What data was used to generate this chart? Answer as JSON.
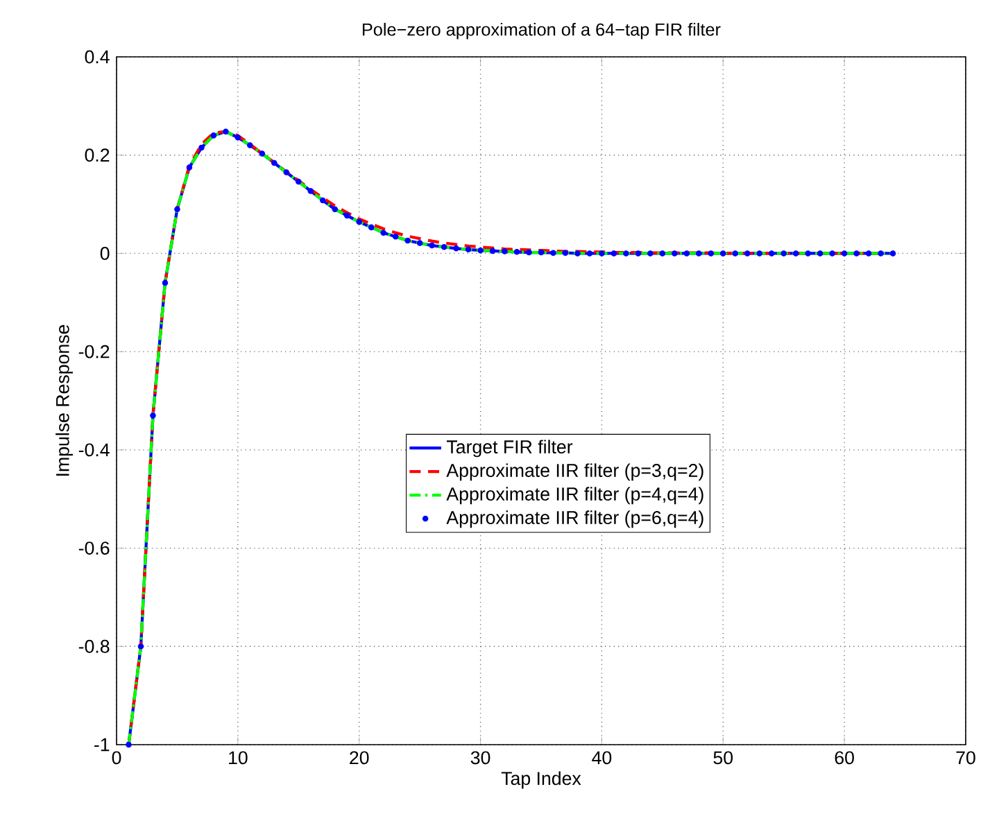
{
  "chart_data": {
    "type": "line",
    "title": "Pole−zero approximation of a 64−tap FIR filter",
    "xlabel": "Tap Index",
    "ylabel": "Impulse Response",
    "x": [
      1,
      2,
      3,
      4,
      5,
      6,
      7,
      8,
      9,
      10,
      11,
      12,
      13,
      14,
      15,
      16,
      17,
      18,
      19,
      20,
      21,
      22,
      23,
      24,
      25,
      26,
      27,
      28,
      29,
      30,
      31,
      32,
      33,
      34,
      35,
      36,
      37,
      38,
      39,
      40,
      41,
      42,
      43,
      44,
      45,
      46,
      47,
      48,
      49,
      50,
      51,
      52,
      53,
      54,
      55,
      56,
      57,
      58,
      59,
      60,
      61,
      62,
      63,
      64
    ],
    "xlim": [
      0,
      70
    ],
    "xticks": [
      0,
      10,
      20,
      30,
      40,
      50,
      60,
      70
    ],
    "ylim": [
      -1,
      0.4
    ],
    "yticks": [
      -1,
      -0.8,
      -0.6,
      -0.4,
      -0.2,
      0,
      0.2,
      0.4
    ],
    "grid": true,
    "legend": "center",
    "series": [
      {
        "name": "Target FIR filter",
        "color": "#0000ff",
        "line_style": "solid",
        "values": [
          -1,
          -0.8,
          -0.33,
          -0.06,
          0.09,
          0.175,
          0.215,
          0.24,
          0.248,
          0.236,
          0.22,
          0.203,
          0.184,
          0.165,
          0.146,
          0.127,
          0.108,
          0.09,
          0.077,
          0.064,
          0.053,
          0.042,
          0.034,
          0.026,
          0.021,
          0.016,
          0.013,
          0.01,
          0.008,
          0.006,
          0.005,
          0.004,
          0.003,
          0.002,
          0.002,
          0.001,
          0.001,
          0,
          0,
          0,
          0,
          0,
          0,
          0,
          0,
          0,
          0,
          0,
          0,
          0,
          0,
          0,
          0,
          0,
          0,
          0,
          0,
          0,
          0,
          0,
          0,
          0,
          0,
          0
        ]
      },
      {
        "name": "Approximate IIR filter (p=3,q=2)",
        "color": "#ff0000",
        "line_style": "dashed",
        "values": [
          -1,
          -0.8,
          -0.33,
          -0.06,
          0.09,
          0.178,
          0.222,
          0.245,
          0.248,
          0.24,
          0.222,
          0.203,
          0.185,
          0.166,
          0.148,
          0.13,
          0.113,
          0.097,
          0.083,
          0.07,
          0.06,
          0.05,
          0.042,
          0.035,
          0.03,
          0.025,
          0.021,
          0.018,
          0.015,
          0.013,
          0.011,
          0.009,
          0.008,
          0.007,
          0.006,
          0.005,
          0.004,
          0.004,
          0.003,
          0.003,
          0.002,
          0.002,
          0.002,
          0.001,
          0.001,
          0.001,
          0.001,
          0.001,
          0.001,
          0,
          0,
          0,
          0,
          0,
          0,
          0,
          0,
          0,
          0,
          0,
          0,
          0,
          0,
          0
        ]
      },
      {
        "name": "Approximate IIR filter (p=4,q=4)",
        "color": "#00ff00",
        "line_style": "dashdot",
        "values": [
          -1,
          -0.8,
          -0.33,
          -0.06,
          0.09,
          0.175,
          0.215,
          0.24,
          0.248,
          0.236,
          0.22,
          0.203,
          0.184,
          0.165,
          0.146,
          0.127,
          0.108,
          0.09,
          0.077,
          0.064,
          0.053,
          0.042,
          0.034,
          0.026,
          0.021,
          0.016,
          0.013,
          0.01,
          0.008,
          0.006,
          0.005,
          0.004,
          0.003,
          0.002,
          0.002,
          0.001,
          0.001,
          0,
          0,
          0,
          0,
          0,
          0,
          0,
          0,
          0,
          0,
          0,
          0,
          0,
          0,
          0,
          0,
          0,
          0,
          0,
          0,
          0,
          0,
          0,
          0,
          0,
          0,
          0
        ]
      },
      {
        "name": "Approximate IIR filter (p=6,q=4)",
        "color": "#0000ff",
        "type": "scatter",
        "marker": "circle",
        "values": [
          -1,
          -0.8,
          -0.33,
          -0.06,
          0.09,
          0.175,
          0.215,
          0.24,
          0.248,
          0.236,
          0.22,
          0.203,
          0.184,
          0.165,
          0.146,
          0.127,
          0.108,
          0.09,
          0.077,
          0.064,
          0.053,
          0.042,
          0.034,
          0.026,
          0.021,
          0.016,
          0.013,
          0.01,
          0.008,
          0.006,
          0.005,
          0.004,
          0.003,
          0.002,
          0.002,
          0.001,
          0.001,
          0,
          0,
          0,
          0,
          0,
          0,
          0,
          0,
          0,
          0,
          0,
          0,
          0,
          0,
          0,
          0,
          0,
          0,
          0,
          0,
          0,
          0,
          0,
          0,
          0,
          0,
          0
        ]
      }
    ]
  }
}
